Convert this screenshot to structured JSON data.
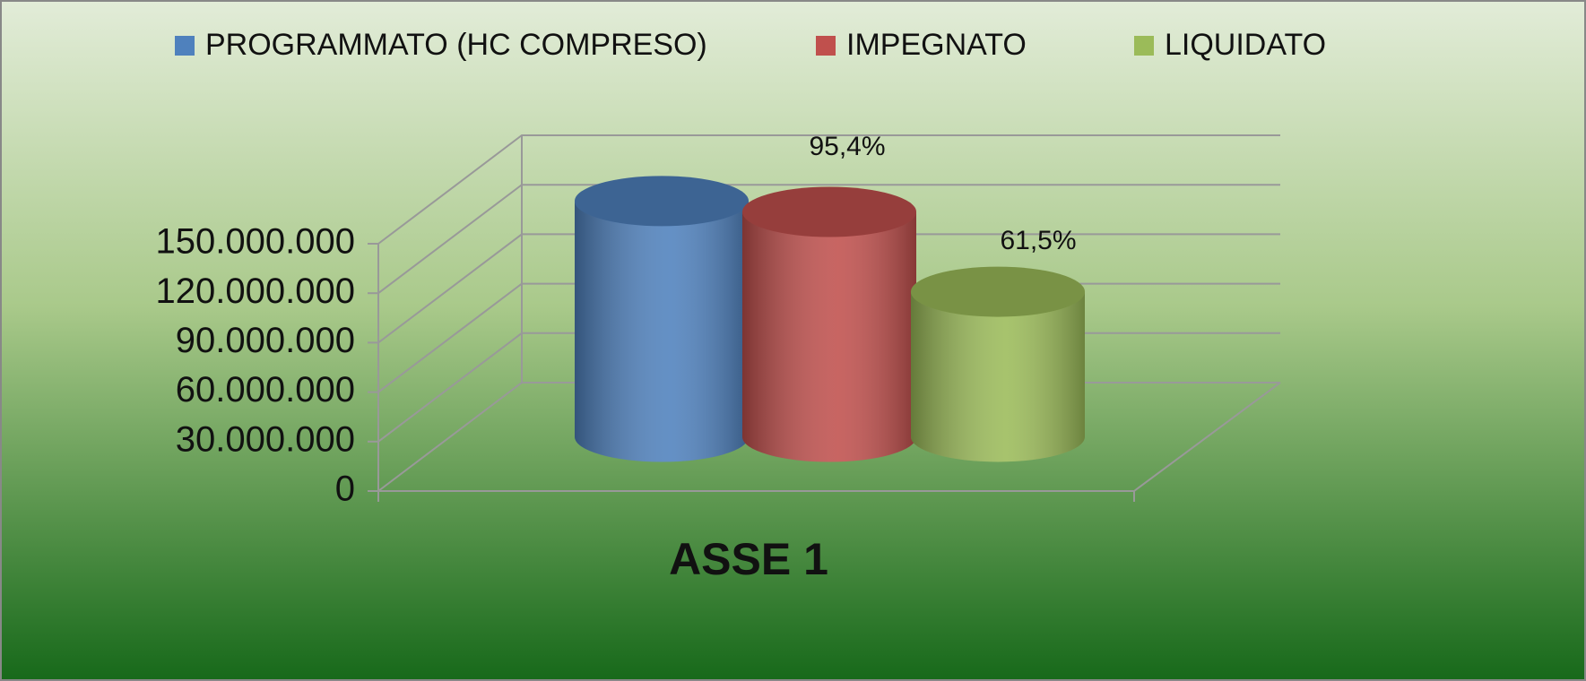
{
  "chart_data": {
    "type": "bar",
    "title": "ASSE 1",
    "categories": [
      "ASSE 1"
    ],
    "series": [
      {
        "name": "PROGRAMMATO (HC COMPRESO)",
        "color": "#4f81bd",
        "values": [
          143000000
        ]
      },
      {
        "name": "IMPEGNATO",
        "color": "#c0504d",
        "values": [
          136400000
        ]
      },
      {
        "name": "LIQUIDATO",
        "color": "#9bbb59",
        "values": [
          88000000
        ]
      }
    ],
    "annotations": [
      "95,4%",
      "61,5%"
    ],
    "ylim": [
      0,
      150000000
    ],
    "yticks": [
      0,
      {
        "value": 30000000,
        "label": "30.000.000"
      },
      {
        "value": 60000000,
        "label": "60.000.000"
      },
      {
        "value": 90000000,
        "label": "90.000.000"
      },
      {
        "value": 120000000,
        "label": "120.000.000"
      },
      {
        "value": 150000000,
        "label": "150.000.000"
      }
    ],
    "grid": true,
    "legend": "top"
  }
}
